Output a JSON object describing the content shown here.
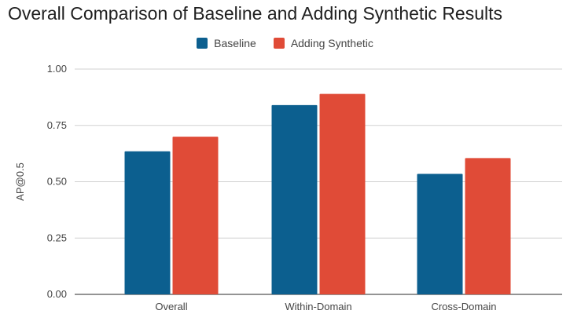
{
  "chart_data": {
    "type": "bar",
    "title": "Overall Comparison of Baseline and Adding Synthetic Results",
    "xlabel": "",
    "ylabel": "AP@0.5",
    "categories": [
      "Overall",
      "Within-Domain",
      "Cross-Domain"
    ],
    "series": [
      {
        "name": "Baseline",
        "color": "#0c5f8f",
        "values": [
          0.635,
          0.84,
          0.535
        ]
      },
      {
        "name": "Adding Synthetic",
        "color": "#e04b37",
        "values": [
          0.7,
          0.89,
          0.605
        ]
      }
    ],
    "ylim": [
      0,
      1
    ],
    "yticks": [
      "0.00",
      "0.25",
      "0.50",
      "0.75",
      "1.00"
    ],
    "grid": true,
    "legend_position": "top-center"
  }
}
